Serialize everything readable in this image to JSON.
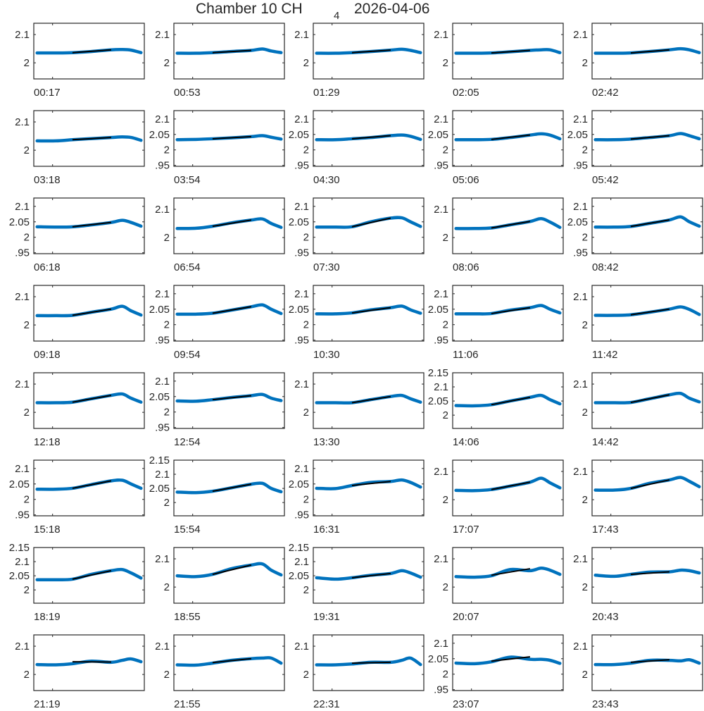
{
  "title": {
    "prefix": "Chamber 10 CH",
    "subscript": "4",
    "date": "2026-04-06"
  },
  "colors": {
    "data": "#0072BD",
    "fit": "#000000",
    "axis": "#262626"
  },
  "chart_data": {
    "type": "line",
    "layout": "grid 8 rows x 5 columns",
    "x_knots": [
      3,
      20,
      35,
      52,
      70,
      80,
      88,
      97
    ],
    "xlim": [
      0,
      100
    ],
    "fit_x": [
      35,
      70
    ],
    "tick_sets": {
      "A": {
        "ticks": [
          2,
          2.1
        ],
        "labels": [
          "2",
          "2.1"
        ],
        "ylim": [
          1.943,
          2.14
        ]
      },
      "B": {
        "ticks": [
          1.95,
          2,
          2.05,
          2.1
        ],
        "labels": [
          ".95",
          "2",
          "2.05",
          "2.1"
        ],
        "ylim": [
          1.947,
          2.127
        ]
      },
      "C": {
        "ticks": [
          2,
          2.05,
          2.1,
          2.15
        ],
        "labels": [
          "2",
          "2.05",
          "2.1",
          "2.15"
        ],
        "ylim": [
          1.953,
          2.15
        ]
      }
    },
    "panels": [
      {
        "time": "00:17",
        "axis": "A",
        "y": [
          2.035,
          2.035,
          2.036,
          2.04,
          2.046,
          2.047,
          2.045,
          2.036
        ],
        "fit": [
          2.036,
          2.046
        ]
      },
      {
        "time": "00:53",
        "axis": "A",
        "y": [
          2.034,
          2.034,
          2.036,
          2.04,
          2.044,
          2.049,
          2.042,
          2.036
        ],
        "fit": [
          2.036,
          2.044
        ]
      },
      {
        "time": "01:29",
        "axis": "A",
        "y": [
          2.034,
          2.034,
          2.036,
          2.04,
          2.045,
          2.048,
          2.044,
          2.036
        ],
        "fit": [
          2.036,
          2.045
        ]
      },
      {
        "time": "02:05",
        "axis": "A",
        "y": [
          2.034,
          2.034,
          2.035,
          2.039,
          2.044,
          2.046,
          2.046,
          2.036
        ],
        "fit": [
          2.035,
          2.044
        ]
      },
      {
        "time": "02:42",
        "axis": "A",
        "y": [
          2.034,
          2.034,
          2.035,
          2.04,
          2.046,
          2.05,
          2.046,
          2.036
        ],
        "fit": [
          2.035,
          2.046
        ]
      },
      {
        "time": "03:18",
        "axis": "A",
        "y": [
          2.033,
          2.033,
          2.037,
          2.041,
          2.045,
          2.047,
          2.045,
          2.035
        ],
        "fit": [
          2.037,
          2.045
        ]
      },
      {
        "time": "03:54",
        "axis": "B",
        "y": [
          2.033,
          2.034,
          2.036,
          2.039,
          2.043,
          2.046,
          2.041,
          2.035
        ],
        "fit": [
          2.036,
          2.043
        ]
      },
      {
        "time": "04:30",
        "axis": "B",
        "y": [
          2.033,
          2.033,
          2.036,
          2.04,
          2.046,
          2.048,
          2.044,
          2.034
        ],
        "fit": [
          2.036,
          2.046
        ]
      },
      {
        "time": "05:06",
        "axis": "B",
        "y": [
          2.033,
          2.033,
          2.034,
          2.04,
          2.048,
          2.052,
          2.048,
          2.036
        ],
        "fit": [
          2.034,
          2.048
        ]
      },
      {
        "time": "05:42",
        "axis": "B",
        "y": [
          2.033,
          2.033,
          2.035,
          2.04,
          2.046,
          2.053,
          2.046,
          2.036
        ],
        "fit": [
          2.035,
          2.046
        ]
      },
      {
        "time": "06:18",
        "axis": "B",
        "y": [
          2.034,
          2.033,
          2.034,
          2.04,
          2.048,
          2.055,
          2.048,
          2.036
        ],
        "fit": [
          2.034,
          2.048
        ]
      },
      {
        "time": "06:54",
        "axis": "A",
        "y": [
          2.032,
          2.033,
          2.04,
          2.052,
          2.062,
          2.066,
          2.05,
          2.036
        ],
        "fit": [
          2.04,
          2.062
        ]
      },
      {
        "time": "07:30",
        "axis": "B",
        "y": [
          2.033,
          2.033,
          2.034,
          2.05,
          2.062,
          2.063,
          2.05,
          2.035
        ],
        "fit": [
          2.034,
          2.062
        ]
      },
      {
        "time": "08:06",
        "axis": "A",
        "y": [
          2.032,
          2.032,
          2.034,
          2.045,
          2.057,
          2.067,
          2.055,
          2.036
        ],
        "fit": [
          2.034,
          2.057
        ]
      },
      {
        "time": "08:42",
        "axis": "B",
        "y": [
          2.033,
          2.033,
          2.035,
          2.045,
          2.056,
          2.066,
          2.05,
          2.036
        ],
        "fit": [
          2.035,
          2.056
        ]
      },
      {
        "time": "09:18",
        "axis": "A",
        "y": [
          2.033,
          2.033,
          2.034,
          2.045,
          2.056,
          2.066,
          2.05,
          2.035
        ],
        "fit": [
          2.034,
          2.056
        ]
      },
      {
        "time": "09:54",
        "axis": "B",
        "y": [
          2.034,
          2.034,
          2.037,
          2.047,
          2.058,
          2.064,
          2.05,
          2.036
        ],
        "fit": [
          2.037,
          2.058
        ]
      },
      {
        "time": "10:30",
        "axis": "B",
        "y": [
          2.035,
          2.035,
          2.038,
          2.048,
          2.055,
          2.06,
          2.048,
          2.037
        ],
        "fit": [
          2.038,
          2.055
        ]
      },
      {
        "time": "11:06",
        "axis": "B",
        "y": [
          2.035,
          2.035,
          2.036,
          2.047,
          2.055,
          2.062,
          2.05,
          2.038
        ],
        "fit": [
          2.036,
          2.055
        ]
      },
      {
        "time": "11:42",
        "axis": "A",
        "y": [
          2.034,
          2.034,
          2.036,
          2.045,
          2.056,
          2.064,
          2.055,
          2.037
        ],
        "fit": [
          2.036,
          2.056
        ]
      },
      {
        "time": "12:18",
        "axis": "A",
        "y": [
          2.034,
          2.034,
          2.036,
          2.048,
          2.06,
          2.065,
          2.05,
          2.036
        ],
        "fit": [
          2.036,
          2.06
        ]
      },
      {
        "time": "12:54",
        "axis": "B",
        "y": [
          2.036,
          2.035,
          2.04,
          2.047,
          2.053,
          2.057,
          2.045,
          2.037
        ],
        "fit": [
          2.04,
          2.053
        ]
      },
      {
        "time": "13:30",
        "axis": "A",
        "y": [
          2.034,
          2.034,
          2.034,
          2.045,
          2.056,
          2.06,
          2.048,
          2.036
        ],
        "fit": [
          2.034,
          2.056
        ]
      },
      {
        "time": "14:06",
        "axis": "C",
        "y": [
          2.034,
          2.033,
          2.037,
          2.05,
          2.063,
          2.07,
          2.055,
          2.04
        ],
        "fit": [
          2.037,
          2.063
        ]
      },
      {
        "time": "14:42",
        "axis": "A",
        "y": [
          2.034,
          2.034,
          2.035,
          2.048,
          2.062,
          2.067,
          2.05,
          2.037
        ],
        "fit": [
          2.035,
          2.062
        ]
      },
      {
        "time": "15:18",
        "axis": "B",
        "y": [
          2.033,
          2.033,
          2.036,
          2.048,
          2.06,
          2.062,
          2.05,
          2.036
        ],
        "fit": [
          2.036,
          2.06
        ]
      },
      {
        "time": "15:54",
        "axis": "C",
        "y": [
          2.037,
          2.035,
          2.04,
          2.052,
          2.065,
          2.068,
          2.05,
          2.038
        ],
        "fit": [
          2.04,
          2.065
        ]
      },
      {
        "time": "16:31",
        "axis": "B",
        "y": [
          2.036,
          2.035,
          2.045,
          2.055,
          2.058,
          2.063,
          2.055,
          2.04
        ],
        "fit": [
          2.045,
          2.058
        ]
      },
      {
        "time": "17:07",
        "axis": "A",
        "y": [
          2.033,
          2.032,
          2.036,
          2.048,
          2.062,
          2.076,
          2.06,
          2.042
        ],
        "fit": [
          2.036,
          2.062
        ]
      },
      {
        "time": "17:43",
        "axis": "A",
        "y": [
          2.034,
          2.034,
          2.04,
          2.058,
          2.07,
          2.079,
          2.065,
          2.046
        ],
        "fit": [
          2.04,
          2.07
        ]
      },
      {
        "time": "18:19",
        "axis": "C",
        "y": [
          2.036,
          2.036,
          2.038,
          2.055,
          2.068,
          2.072,
          2.06,
          2.042
        ],
        "fit": [
          2.038,
          2.068
        ]
      },
      {
        "time": "18:55",
        "axis": "A",
        "y": [
          2.04,
          2.037,
          2.045,
          2.065,
          2.078,
          2.082,
          2.06,
          2.043
        ],
        "fit": [
          2.045,
          2.078
        ]
      },
      {
        "time": "19:31",
        "axis": "C",
        "y": [
          2.043,
          2.038,
          2.043,
          2.052,
          2.058,
          2.068,
          2.06,
          2.045
        ],
        "fit": [
          2.043,
          2.058
        ]
      },
      {
        "time": "20:07",
        "axis": "A",
        "y": [
          2.037,
          2.035,
          2.04,
          2.062,
          2.058,
          2.067,
          2.06,
          2.045
        ],
        "fit": [
          2.042,
          2.065
        ]
      },
      {
        "time": "20:43",
        "axis": "A",
        "y": [
          2.042,
          2.038,
          2.045,
          2.053,
          2.054,
          2.06,
          2.058,
          2.05
        ],
        "fit": [
          2.045,
          2.054
        ]
      },
      {
        "time": "21:19",
        "axis": "A",
        "y": [
          2.035,
          2.034,
          2.038,
          2.047,
          2.043,
          2.05,
          2.055,
          2.045
        ],
        "fit": [
          2.045,
          2.044
        ]
      },
      {
        "time": "21:55",
        "axis": "A",
        "y": [
          2.034,
          2.033,
          2.04,
          2.05,
          2.056,
          2.058,
          2.058,
          2.04
        ],
        "fit": [
          2.042,
          2.056
        ]
      },
      {
        "time": "22:31",
        "axis": "A",
        "y": [
          2.034,
          2.034,
          2.037,
          2.043,
          2.043,
          2.05,
          2.058,
          2.035
        ],
        "fit": [
          2.04,
          2.043
        ]
      },
      {
        "time": "23:07",
        "axis": "B",
        "y": [
          2.036,
          2.034,
          2.04,
          2.055,
          2.048,
          2.048,
          2.045,
          2.035
        ],
        "fit": [
          2.042,
          2.056
        ]
      },
      {
        "time": "23:43",
        "axis": "A",
        "y": [
          2.035,
          2.035,
          2.04,
          2.05,
          2.05,
          2.048,
          2.052,
          2.04
        ],
        "fit": [
          2.043,
          2.052
        ]
      }
    ]
  }
}
